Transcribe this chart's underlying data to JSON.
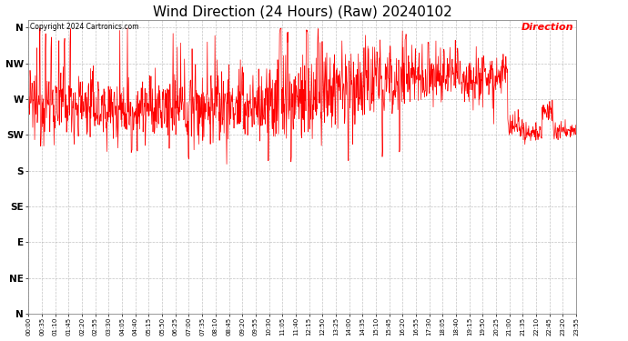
{
  "title": "Wind Direction (24 Hours) (Raw) 20240102",
  "copyright": "Copyright 2024 Cartronics.com",
  "legend_label": "Direction",
  "legend_color": "#ff0000",
  "line_color": "#ff0000",
  "background_color": "#ffffff",
  "grid_color": "#aaaaaa",
  "ytick_labels": [
    "N",
    "NW",
    "W",
    "SW",
    "S",
    "SE",
    "E",
    "NE",
    "N"
  ],
  "ytick_values": [
    360,
    315,
    270,
    225,
    180,
    135,
    90,
    45,
    0
  ],
  "ylim": [
    0,
    370
  ],
  "title_fontsize": 11,
  "xtick_labels": [
    "00:00",
    "00:35",
    "01:10",
    "01:45",
    "02:20",
    "02:55",
    "03:30",
    "04:05",
    "04:40",
    "05:15",
    "05:50",
    "06:25",
    "07:00",
    "07:35",
    "08:10",
    "08:45",
    "09:20",
    "09:55",
    "10:30",
    "11:05",
    "11:40",
    "12:15",
    "12:50",
    "13:25",
    "14:00",
    "14:35",
    "15:10",
    "15:45",
    "16:20",
    "16:55",
    "17:30",
    "18:05",
    "18:40",
    "19:15",
    "19:50",
    "20:25",
    "21:00",
    "21:35",
    "22:10",
    "22:45",
    "23:20",
    "23:55"
  ]
}
